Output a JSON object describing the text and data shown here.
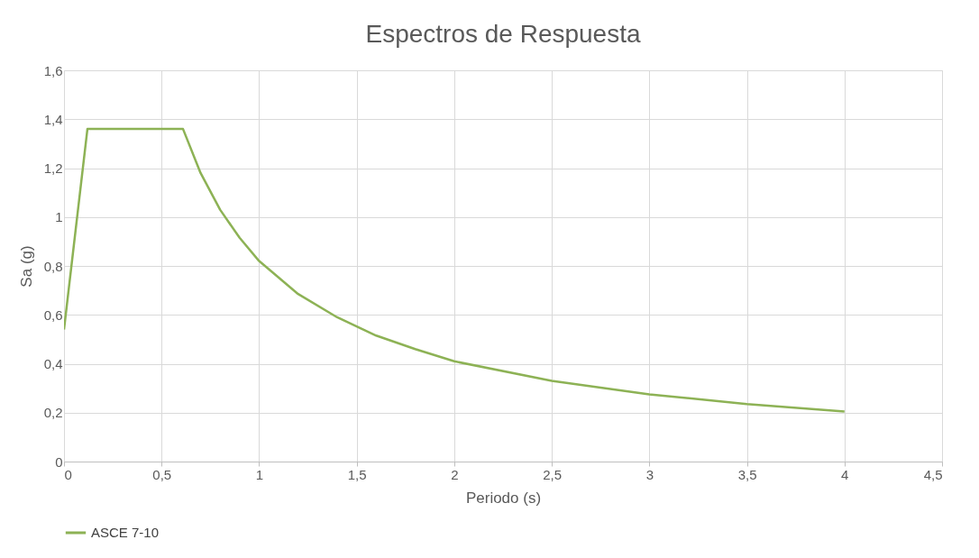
{
  "chart_data": {
    "type": "line",
    "title": "Espectros de Respuesta",
    "xlabel": "Periodo (s)",
    "ylabel": "Sa (g)",
    "xlim": [
      0,
      4.5
    ],
    "xticks": [
      0,
      {
        "value": 0.5,
        "label": "0,5"
      },
      1,
      {
        "value": 1.5,
        "label": "1,5"
      },
      2,
      {
        "value": 2.5,
        "label": "2,5"
      },
      3,
      {
        "value": 3.5,
        "label": "3,5"
      },
      4,
      {
        "value": 4.5,
        "label": "4,5"
      }
    ],
    "ylim": [
      0,
      1.6
    ],
    "yticks": [
      0,
      {
        "value": 0.2,
        "label": "0,2"
      },
      {
        "value": 0.4,
        "label": "0,4"
      },
      {
        "value": 0.6,
        "label": "0,6"
      },
      {
        "value": 0.8,
        "label": "0,8"
      },
      1,
      {
        "value": 1.2,
        "label": "1,2"
      },
      {
        "value": 1.4,
        "label": "1,4"
      },
      {
        "value": 1.6,
        "label": "1,6"
      }
    ],
    "grid": true,
    "legend": "bottom",
    "marker": "none",
    "line_style": "solid",
    "series": [
      {
        "name": "ASCE 7-10",
        "color": "#8db255",
        "x": [
          0,
          0.12,
          0.61,
          0.7,
          0.8,
          0.9,
          1,
          1.2,
          1.4,
          1.6,
          1.8,
          2,
          2.5,
          3,
          3.5,
          4
        ],
        "values": [
          0.54,
          1.36,
          1.36,
          1.18,
          1.03,
          0.915,
          0.82,
          0.685,
          0.59,
          0.515,
          0.46,
          0.41,
          0.33,
          0.275,
          0.235,
          0.205
        ]
      }
    ]
  }
}
